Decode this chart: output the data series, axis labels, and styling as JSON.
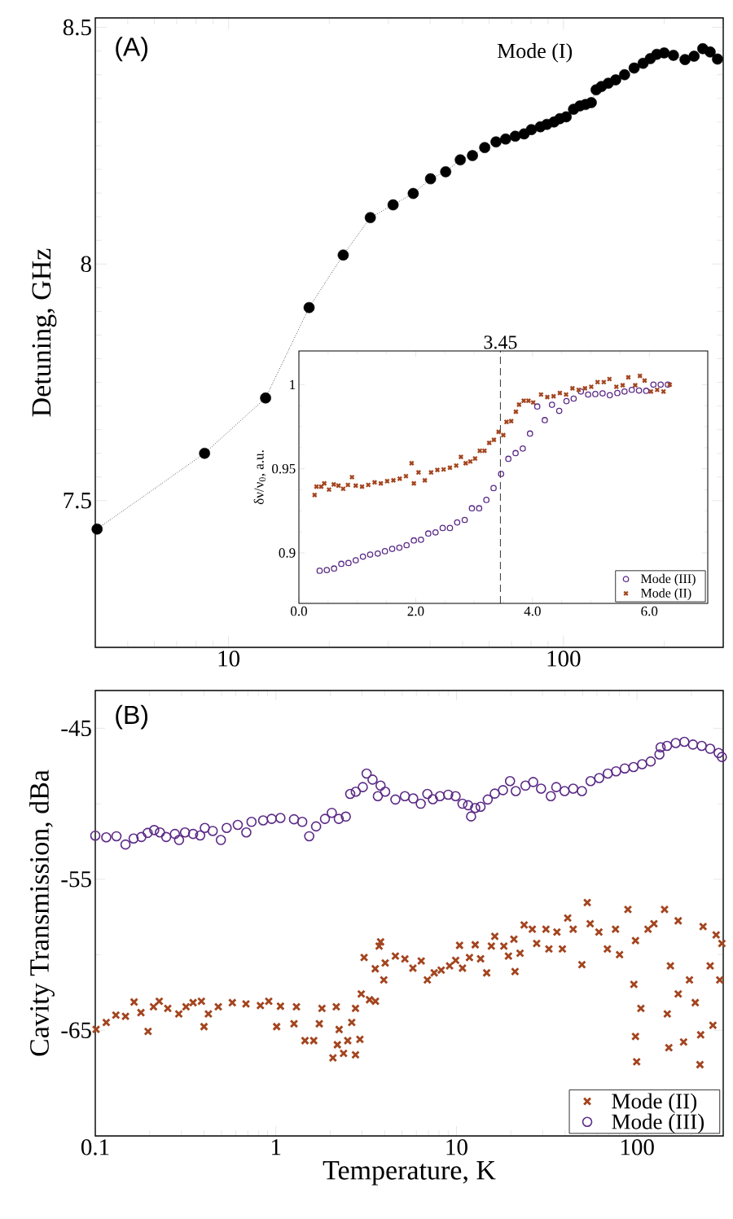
{
  "chart_data": [
    {
      "type": "line",
      "ylabel": "Detuning, GHz",
      "log": "x",
      "marker": "circle",
      "line_style": "dotted",
      "color": "#000000",
      "annotations": [
        "(A)",
        "Mode (I)"
      ],
      "xlim": [
        4,
        300
      ],
      "xticks": [
        10,
        100
      ],
      "ylim": [
        7.19,
        8.52
      ],
      "yticks": [
        7.5,
        8,
        8.5
      ],
      "x": [
        4.05,
        8.48,
        12.9,
        17.4,
        22.0,
        26.5,
        31.0,
        35.6,
        40.1,
        44.5,
        49.2,
        53.5,
        58.2,
        62.9,
        67.2,
        71.8,
        76.3,
        80.2,
        85.3,
        89.2,
        93.7,
        97.5,
        101.9,
        107.2,
        112.0,
        116.4,
        121.1,
        125.2,
        129.8,
        136.1,
        143.2,
        152.2,
        162.6,
        172.9,
        181.7,
        190.0,
        199.9,
        213,
        230.7,
        245.5,
        260.6,
        274.2,
        288.4
      ],
      "values": [
        7.44,
        7.6,
        7.717,
        7.908,
        8.019,
        8.098,
        8.125,
        8.149,
        8.18,
        8.195,
        8.22,
        8.229,
        8.246,
        8.258,
        8.264,
        8.27,
        8.275,
        8.284,
        8.29,
        8.295,
        8.3,
        8.307,
        8.311,
        8.327,
        8.334,
        8.337,
        8.341,
        8.368,
        8.375,
        8.382,
        8.389,
        8.4,
        8.414,
        8.424,
        8.434,
        8.443,
        8.446,
        8.441,
        8.432,
        8.439,
        8.455,
        8.448,
        8.433
      ]
    },
    {
      "type": "scatter",
      "ylabel": "δν/ν$_{0}$, a.u.",
      "legend": "bottom right",
      "xlim": [
        0,
        7
      ],
      "xticks": [
        {
          "value": 0,
          "label": "0.0"
        },
        {
          "value": 2,
          "label": "2.0"
        },
        {
          "value": 4,
          "label": "4.0"
        },
        {
          "value": 6,
          "label": "6.0"
        }
      ],
      "ylim": [
        0.87,
        1.02
      ],
      "yticks": [
        0.9,
        0.95,
        1
      ],
      "ref_lines": [
        {
          "axis": "x",
          "value": 3.45,
          "label": "3.45",
          "line_style": "dashed"
        }
      ],
      "series": [
        {
          "name": "Mode (III)",
          "color": "#5b2a86",
          "marker": "circle",
          "x": [
            0.355,
            0.478,
            0.602,
            0.726,
            0.849,
            0.973,
            1.097,
            1.22,
            1.35,
            1.473,
            1.597,
            1.72,
            1.844,
            1.968,
            2.09,
            2.215,
            2.339,
            2.462,
            2.586,
            2.71,
            2.839,
            2.962,
            3.086,
            3.21,
            3.333,
            3.462,
            3.586,
            3.71,
            3.833,
            3.957,
            4.081,
            4.21,
            4.333,
            4.457,
            4.581,
            4.704,
            4.828,
            4.952,
            5.075,
            5.199,
            5.323,
            5.452,
            5.575,
            5.699,
            5.823,
            5.946,
            6.07,
            6.194,
            6.317
          ],
          "values": [
            0.8894,
            0.8898,
            0.8907,
            0.8935,
            0.894,
            0.8956,
            0.8978,
            0.899,
            0.8996,
            0.901,
            0.9024,
            0.9031,
            0.9046,
            0.9074,
            0.9078,
            0.9115,
            0.9122,
            0.9148,
            0.9148,
            0.9181,
            0.9196,
            0.9265,
            0.9265,
            0.9315,
            0.9385,
            0.9469,
            0.9559,
            0.9593,
            0.962,
            0.9709,
            0.987,
            0.9789,
            0.988,
            0.9844,
            0.9902,
            0.9917,
            0.9959,
            0.9941,
            0.9944,
            0.9948,
            0.9937,
            0.995,
            0.9959,
            0.9969,
            0.9965,
            0.9963,
            1.0,
            1.0,
            1.0
          ]
        },
        {
          "name": "Mode (II)",
          "color": "#a3451f",
          "marker": "cross",
          "x": [
            0.269,
            0.301,
            0.382,
            0.435,
            0.516,
            0.597,
            0.677,
            0.758,
            0.839,
            0.909,
            0.973,
            1.081,
            1.188,
            1.296,
            1.403,
            1.511,
            1.618,
            1.726,
            1.833,
            1.93,
            1.968,
            2.048,
            2.156,
            2.263,
            2.371,
            2.478,
            2.586,
            2.694,
            2.774,
            2.855,
            2.935,
            3.016,
            3.097,
            3.177,
            3.258,
            3.339,
            3.419,
            3.5,
            3.554,
            3.634,
            3.715,
            3.769,
            3.849,
            3.93,
            4.011,
            4.145,
            4.253,
            4.36,
            4.468,
            4.575,
            4.683,
            4.79,
            4.898,
            5.005,
            5.113,
            5.22,
            5.317,
            5.435,
            5.543,
            5.64,
            5.758,
            5.839,
            5.919,
            6.027,
            6.134,
            6.242,
            6.349
          ],
          "values": [
            0.9344,
            0.9394,
            0.9394,
            0.9413,
            0.9376,
            0.9407,
            0.94,
            0.9381,
            0.9404,
            0.945,
            0.94,
            0.9394,
            0.9404,
            0.9419,
            0.9413,
            0.9426,
            0.9431,
            0.9441,
            0.9456,
            0.9533,
            0.9413,
            0.9478,
            0.9431,
            0.9478,
            0.9493,
            0.9496,
            0.9506,
            0.9519,
            0.957,
            0.9533,
            0.9543,
            0.9561,
            0.9607,
            0.9607,
            0.9654,
            0.9672,
            0.9719,
            0.97,
            0.9778,
            0.9783,
            0.9839,
            0.9881,
            0.9904,
            0.9904,
            0.9894,
            0.9941,
            0.9926,
            0.9931,
            0.995,
            0.9941,
            0.9978,
            0.9969,
            0.9978,
            0.9987,
            1.0015,
            1.0015,
            1.0033,
            0.9987,
            0.9996,
            1.0043,
            0.9996,
            1.0052,
            1.0024,
            0.9959,
            0.9969,
            0.9959,
            1.0
          ]
        }
      ]
    },
    {
      "type": "scatter",
      "xlabel": "Temperature, K",
      "ylabel": "Cavity Transmission, dBa",
      "log": "x",
      "legend": "bottom right",
      "annotations": [
        "(B)"
      ],
      "xlim": [
        0.1,
        300
      ],
      "xticks": [
        0.1,
        1,
        10,
        100
      ],
      "ylim": [
        -72,
        -42.5
      ],
      "yticks": [
        -65,
        -55,
        -45
      ],
      "series": [
        {
          "name": "Mode (II)",
          "color": "#a3451f",
          "marker": "cross",
          "x": [
            0.101,
            0.115,
            0.13,
            0.147,
            0.164,
            0.179,
            0.196,
            0.21,
            0.226,
            0.252,
            0.29,
            0.318,
            0.348,
            0.387,
            0.4,
            0.423,
            0.48,
            0.574,
            0.683,
            0.821,
            0.913,
            1.01,
            1.06,
            1.26,
            1.3,
            1.45,
            1.62,
            1.74,
            1.8,
            2.16,
            2.07,
            2.19,
            2.24,
            2.37,
            2.5,
            2.63,
            2.76,
            2.76,
            2.92,
            2.97,
            3.08,
            3.3,
            3.55,
            3.73,
            4.03,
            3.8,
            3.96,
            3.56,
            4.59,
            5.18,
            5.74,
            6.38,
            6.9,
            7.53,
            8.23,
            9.16,
            9.9,
            10.4,
            10.8,
            11.8,
            12.7,
            13.6,
            14.7,
            15.6,
            16.3,
            18.3,
            19.4,
            21.1,
            20.8,
            22.5,
            23.7,
            26.3,
            27.8,
            31.3,
            32.5,
            36,
            38.6,
            41.3,
            44.3,
            49.5,
            53,
            55,
            61.5,
            68.5,
            76,
            80,
            89,
            98,
            96,
            98,
            99.5,
            105,
            115,
            124,
            142,
            147,
            150,
            153,
            169,
            169,
            181,
            195,
            210,
            223,
            225,
            232,
            254,
            263,
            274,
            287,
            295
          ],
          "values": [
            -64.94,
            -64.48,
            -64.0,
            -64.08,
            -63.13,
            -63.83,
            -65.08,
            -63.45,
            -63.08,
            -63.55,
            -63.92,
            -63.45,
            -63.17,
            -63.08,
            -64.76,
            -63.92,
            -63.45,
            -63.17,
            -63.26,
            -63.36,
            -63.08,
            -64.76,
            -63.41,
            -64.57,
            -63.45,
            -65.69,
            -65.69,
            -64.57,
            -63.55,
            -63.45,
            -66.83,
            -65.96,
            -64.95,
            -66.53,
            -65.69,
            -64.48,
            -66.63,
            -63.55,
            -65.6,
            -62.6,
            -60.18,
            -62.98,
            -60.93,
            -59.43,
            -60.55,
            -59.15,
            -61.67,
            -63.08,
            -60.09,
            -60.28,
            -60.89,
            -60.41,
            -61.67,
            -61.2,
            -61.02,
            -60.74,
            -60.37,
            -59.38,
            -60.89,
            -60.18,
            -59.34,
            -60.27,
            -61.2,
            -59.43,
            -58.78,
            -59.43,
            -60.09,
            -61.11,
            -58.97,
            -59.9,
            -58.03,
            -58.31,
            -59.25,
            -58.31,
            -59.62,
            -58.5,
            -59.62,
            -57.57,
            -58.31,
            -60.65,
            -56.54,
            -57.94,
            -58.5,
            -59.62,
            -58.31,
            -59.99,
            -57.0,
            -59.06,
            -61.96,
            -65.41,
            -67.09,
            -63.55,
            -58.31,
            -57.94,
            -57.0,
            -63.92,
            -66.16,
            -60.74,
            -57.75,
            -62.6,
            -65.78,
            -61.67,
            -63.17,
            -67.28,
            -65.3,
            -58.13,
            -60.74,
            -64.67,
            -58.69,
            -61.67,
            -59.25
          ]
        },
        {
          "name": "Mode (III)",
          "color": "#5b2a86",
          "marker": "circle",
          "x": [
            0.1,
            0.115,
            0.131,
            0.147,
            0.163,
            0.18,
            0.195,
            0.212,
            0.228,
            0.247,
            0.276,
            0.291,
            0.314,
            0.348,
            0.381,
            0.404,
            0.447,
            0.496,
            0.534,
            0.615,
            0.686,
            0.733,
            0.85,
            0.948,
            1.06,
            1.26,
            1.4,
            1.53,
            1.67,
            1.87,
            2.04,
            2.23,
            2.44,
            2.58,
            2.77,
            3.03,
            3.18,
            3.43,
            3.67,
            3.8,
            4.03,
            4.59,
            5.18,
            5.76,
            6.34,
            6.9,
            7.4,
            8.1,
            9.0,
            9.89,
            10.8,
            11.6,
            12.05,
            12.7,
            13.6,
            14.9,
            16.3,
            18.1,
            19.8,
            21.3,
            24.1,
            26.6,
            29.4,
            33.3,
            35.7,
            39.7,
            44.3,
            49.5,
            55.3,
            61.7,
            68.9,
            76.5,
            85.5,
            95.6,
            106.7,
            119,
            133,
            135,
            146.6,
            163.7,
            182.8,
            204,
            228,
            254,
            283,
            295
          ],
          "values": [
            -52.11,
            -52.22,
            -52.15,
            -52.7,
            -52.3,
            -52.2,
            -51.93,
            -51.74,
            -51.9,
            -52.2,
            -52.0,
            -52.4,
            -51.9,
            -52.0,
            -52.1,
            -51.6,
            -51.8,
            -52.4,
            -51.6,
            -51.4,
            -51.9,
            -51.2,
            -51.1,
            -51.0,
            -50.94,
            -51.03,
            -51.2,
            -52.15,
            -51.5,
            -51.0,
            -50.6,
            -51.0,
            -50.85,
            -49.35,
            -49.2,
            -48.9,
            -48.0,
            -48.4,
            -49.5,
            -48.8,
            -49.2,
            -49.72,
            -49.5,
            -49.65,
            -50.0,
            -49.35,
            -49.7,
            -49.5,
            -49.4,
            -49.5,
            -50.0,
            -50.1,
            -50.84,
            -50.28,
            -50.2,
            -49.72,
            -49.33,
            -49.1,
            -48.5,
            -49.16,
            -48.8,
            -48.56,
            -49.0,
            -49.5,
            -48.9,
            -49.16,
            -49.0,
            -49.16,
            -48.5,
            -48.3,
            -48.0,
            -47.85,
            -47.66,
            -47.57,
            -47.38,
            -47.2,
            -46.73,
            -46.26,
            -46.17,
            -45.98,
            -45.9,
            -46.08,
            -46.17,
            -46.36,
            -46.64,
            -46.9
          ]
        }
      ]
    }
  ]
}
